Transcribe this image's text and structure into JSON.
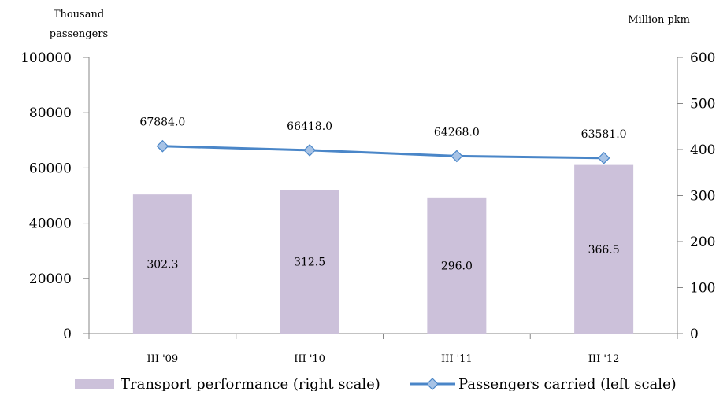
{
  "chart_data": {
    "type": "bar+line",
    "left_unit": "Thousand passengers",
    "right_unit": "Million pkm",
    "left_ticks": [
      "0",
      "20000",
      "40000",
      "60000",
      "80000",
      "100000"
    ],
    "right_ticks": [
      "0",
      "100",
      "200",
      "300",
      "400",
      "500",
      "600"
    ],
    "left_ylim": [
      0,
      100000
    ],
    "right_ylim": [
      0,
      600
    ],
    "categories": [
      "III '09",
      "III '10",
      "III '11",
      "III '12"
    ],
    "series": [
      {
        "name": "Transport performance (right scale)",
        "type": "bar",
        "axis": "right",
        "color": "#ccc1da",
        "values": [
          302.3,
          312.5,
          296.0,
          366.5
        ],
        "labels": [
          "302.3",
          "312.5",
          "296.0",
          "366.5"
        ]
      },
      {
        "name": "Passengers carried (left scale)",
        "type": "line",
        "axis": "left",
        "color": "#4a86c8",
        "marker_color": "#a7c3e6",
        "values": [
          67884.0,
          66418.0,
          64268.0,
          63581.0
        ],
        "labels": [
          "67884.0",
          "66418.0",
          "64268.0",
          "63581.0"
        ]
      }
    ],
    "grid": false,
    "legend_position": "bottom"
  }
}
